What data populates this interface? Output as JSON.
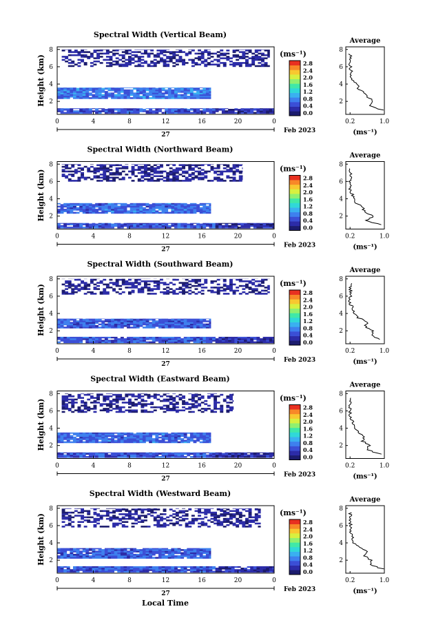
{
  "figure": {
    "xlabel": "Local Time",
    "date_day": "27",
    "date_month": "Feb 2023",
    "x_ticks": [
      "0",
      "4",
      "8",
      "12",
      "16",
      "20",
      "0"
    ],
    "y_ticks": [
      "2",
      "4",
      "6",
      "8"
    ],
    "ylabel": "Height (km)",
    "colorbar_unit": "(ms⁻¹)",
    "colorbar_ticks": [
      "0.0",
      "0.4",
      "0.8",
      "1.2",
      "1.6",
      "2.0",
      "2.4",
      "2.8"
    ],
    "profile_title": "Average",
    "profile_y_ticks": [
      "2",
      "4",
      "6",
      "8"
    ],
    "profile_x_ticks": [
      "0.2",
      "1.0"
    ],
    "profile_xlabel": "(ms⁻¹)",
    "colormap": [
      "#1c1c6e",
      "#2c2ca8",
      "#3b4fd6",
      "#3e80ee",
      "#3ab0f0",
      "#30d8d8",
      "#40e8a8",
      "#90f070",
      "#d8f040",
      "#f8c830",
      "#f88828",
      "#e83020"
    ]
  },
  "chart_data": [
    {
      "type": "heatmap",
      "title": "Spectral Width (Vertical Beam)",
      "xlim": [
        0,
        24
      ],
      "ylim": [
        0.5,
        8.3
      ],
      "zlim": [
        0.0,
        2.8
      ],
      "layers": [
        {
          "h0": 0.6,
          "h1": 1.2,
          "t0": 0,
          "t1": 17.5,
          "val": 0.55
        },
        {
          "h0": 0.6,
          "h1": 1.2,
          "t0": 17.5,
          "t1": 24,
          "val": 0.35
        },
        {
          "h0": 2.3,
          "h1": 3.6,
          "t0": 0,
          "t1": 17,
          "val": 0.75
        },
        {
          "h0": 6.0,
          "h1": 8.0,
          "t0": 0.5,
          "t1": 23.5,
          "val": 0.25
        }
      ],
      "profile": {
        "heights": [
          1.0,
          1.5,
          2.0,
          2.5,
          3.0,
          3.5,
          4.0,
          4.5,
          5.0,
          5.5,
          6.0,
          6.5,
          7.0,
          7.5
        ],
        "values": [
          0.95,
          0.65,
          0.75,
          0.6,
          0.55,
          0.4,
          0.35,
          0.25,
          0.2,
          0.22,
          0.2,
          0.22,
          0.2,
          0.2
        ]
      }
    },
    {
      "type": "heatmap",
      "title": "Spectral Width (Northward Beam)",
      "xlim": [
        0,
        24
      ],
      "ylim": [
        0.5,
        8.3
      ],
      "zlim": [
        0.0,
        2.8
      ],
      "layers": [
        {
          "h0": 0.6,
          "h1": 1.2,
          "t0": 0,
          "t1": 17.5,
          "val": 0.6
        },
        {
          "h0": 0.6,
          "h1": 1.2,
          "t0": 17.5,
          "t1": 24,
          "val": 0.35
        },
        {
          "h0": 2.3,
          "h1": 3.5,
          "t0": 0,
          "t1": 17,
          "val": 0.7
        },
        {
          "h0": 6.0,
          "h1": 8.0,
          "t0": 0.5,
          "t1": 20.5,
          "val": 0.25
        }
      ],
      "profile": {
        "heights": [
          1.0,
          1.5,
          2.0,
          2.5,
          3.0,
          3.5,
          4.0,
          4.5,
          5.0,
          5.5,
          6.0,
          6.5,
          7.0,
          7.5
        ],
        "values": [
          0.9,
          0.6,
          0.75,
          0.55,
          0.5,
          0.35,
          0.3,
          0.25,
          0.2,
          0.22,
          0.2,
          0.2,
          0.2,
          0.2
        ]
      }
    },
    {
      "type": "heatmap",
      "title": "Spectral Width (Southward Beam)",
      "xlim": [
        0,
        24
      ],
      "ylim": [
        0.5,
        8.3
      ],
      "zlim": [
        0.0,
        2.8
      ],
      "layers": [
        {
          "h0": 0.6,
          "h1": 1.3,
          "t0": 0,
          "t1": 17.5,
          "val": 0.6
        },
        {
          "h0": 0.6,
          "h1": 1.3,
          "t0": 17.5,
          "t1": 24,
          "val": 0.35
        },
        {
          "h0": 2.3,
          "h1": 3.4,
          "t0": 0,
          "t1": 17,
          "val": 0.65
        },
        {
          "h0": 6.2,
          "h1": 8.0,
          "t0": 0.5,
          "t1": 23.5,
          "val": 0.25
        }
      ],
      "profile": {
        "heights": [
          1.0,
          1.5,
          2.0,
          2.5,
          3.0,
          3.5,
          4.0,
          4.5,
          5.0,
          5.5,
          6.0,
          6.5,
          7.0,
          7.5
        ],
        "values": [
          0.9,
          0.7,
          0.75,
          0.55,
          0.6,
          0.4,
          0.3,
          0.25,
          0.22,
          0.2,
          0.2,
          0.22,
          0.2,
          0.2
        ]
      }
    },
    {
      "type": "heatmap",
      "title": "Spectral Width (Eastward Beam)",
      "xlim": [
        0,
        24
      ],
      "ylim": [
        0.5,
        8.3
      ],
      "zlim": [
        0.0,
        2.8
      ],
      "layers": [
        {
          "h0": 0.6,
          "h1": 1.2,
          "t0": 0,
          "t1": 17.5,
          "val": 0.6
        },
        {
          "h0": 0.6,
          "h1": 1.2,
          "t0": 17.5,
          "t1": 24,
          "val": 0.35
        },
        {
          "h0": 2.3,
          "h1": 3.5,
          "t0": 0,
          "t1": 17,
          "val": 0.7
        },
        {
          "h0": 5.8,
          "h1": 8.0,
          "t0": 0.5,
          "t1": 19.5,
          "val": 0.25
        }
      ],
      "profile": {
        "heights": [
          1.0,
          1.5,
          2.0,
          2.5,
          3.0,
          3.5,
          4.0,
          4.5,
          5.0,
          5.5,
          6.0,
          6.5,
          7.0,
          7.5
        ],
        "values": [
          0.9,
          0.6,
          0.65,
          0.5,
          0.55,
          0.4,
          0.3,
          0.28,
          0.22,
          0.2,
          0.2,
          0.2,
          0.2,
          0.2
        ]
      }
    },
    {
      "type": "heatmap",
      "title": "Spectral Width (Westward Beam)",
      "xlim": [
        0,
        24
      ],
      "ylim": [
        0.5,
        8.3
      ],
      "zlim": [
        0.0,
        2.8
      ],
      "layers": [
        {
          "h0": 0.6,
          "h1": 1.3,
          "t0": 0,
          "t1": 17.5,
          "val": 0.6
        },
        {
          "h0": 0.6,
          "h1": 1.3,
          "t0": 17.5,
          "t1": 24,
          "val": 0.35
        },
        {
          "h0": 2.2,
          "h1": 3.4,
          "t0": 0,
          "t1": 17,
          "val": 0.65
        },
        {
          "h0": 5.8,
          "h1": 8.0,
          "t0": 0.5,
          "t1": 22.5,
          "val": 0.25
        }
      ],
      "profile": {
        "heights": [
          1.0,
          1.5,
          2.0,
          2.5,
          3.0,
          3.5,
          4.0,
          4.5,
          5.0,
          5.5,
          6.0,
          6.5,
          7.0,
          7.5
        ],
        "values": [
          0.95,
          0.65,
          0.7,
          0.55,
          0.6,
          0.4,
          0.3,
          0.25,
          0.22,
          0.2,
          0.2,
          0.22,
          0.2,
          0.2
        ]
      }
    }
  ]
}
